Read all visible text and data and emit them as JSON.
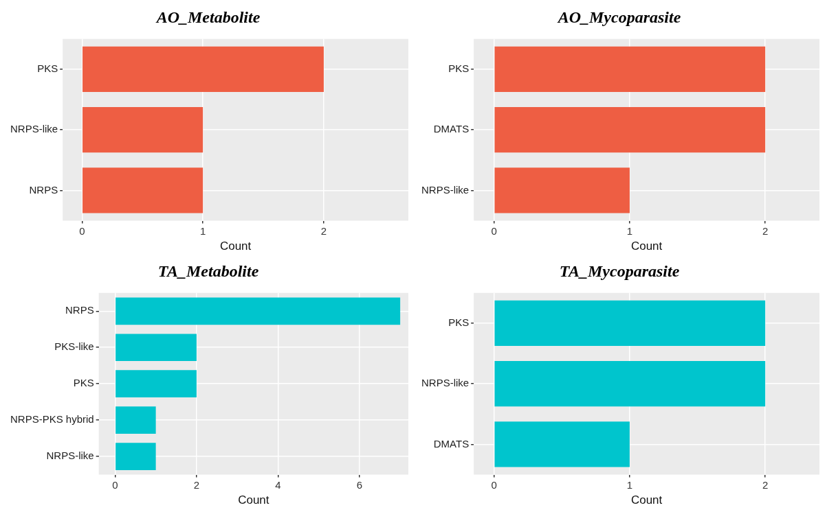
{
  "chart_data": [
    {
      "type": "bar",
      "orientation": "horizontal",
      "title": "AO_Metabolite",
      "xlabel": "Count",
      "categories": [
        "PKS",
        "NRPS-like",
        "NRPS"
      ],
      "values": [
        2,
        1,
        1
      ],
      "color": "#ee5e43",
      "xlim": [
        -0.16,
        2.7
      ],
      "xticks": [
        0,
        1,
        2
      ],
      "grid": true,
      "legend": false
    },
    {
      "type": "bar",
      "orientation": "horizontal",
      "title": "AO_Mycoparasite",
      "xlabel": "Count",
      "categories": [
        "PKS",
        "DMATS",
        "NRPS-like"
      ],
      "values": [
        2,
        2,
        1
      ],
      "color": "#ee5e43",
      "xlim": [
        -0.15,
        2.4
      ],
      "xticks": [
        0,
        1,
        2
      ],
      "grid": true,
      "legend": false
    },
    {
      "type": "bar",
      "orientation": "horizontal",
      "title": "TA_Metabolite",
      "xlabel": "Count",
      "categories": [
        "NRPS",
        "PKS-like",
        "PKS",
        "NRPS-PKS hybrid",
        "NRPS-like"
      ],
      "values": [
        7,
        2,
        2,
        1,
        1
      ],
      "color": "#00c5cd",
      "xlim": [
        -0.4,
        7.2
      ],
      "xticks": [
        0,
        2,
        4,
        6
      ],
      "grid": true,
      "legend": false
    },
    {
      "type": "bar",
      "orientation": "horizontal",
      "title": "TA_Mycoparasite",
      "xlabel": "Count",
      "categories": [
        "PKS",
        "NRPS-like",
        "DMATS"
      ],
      "values": [
        2,
        2,
        1
      ],
      "color": "#00c5cd",
      "xlim": [
        -0.15,
        2.4
      ],
      "xticks": [
        0,
        1,
        2
      ],
      "grid": true,
      "legend": false
    }
  ]
}
